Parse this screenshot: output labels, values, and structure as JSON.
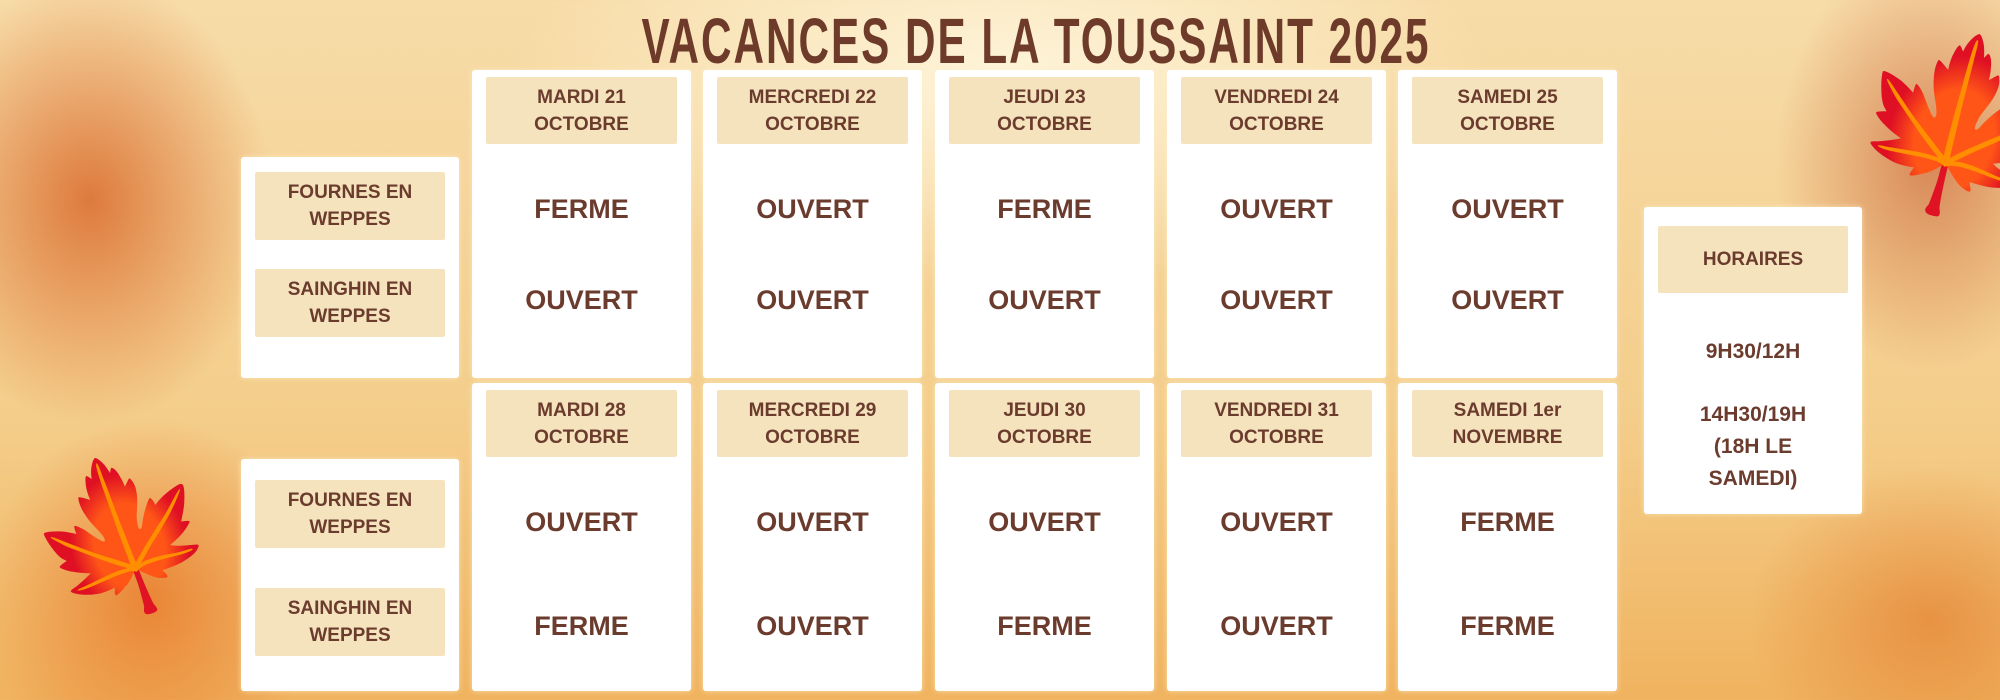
{
  "title": "VACANCES DE LA TOUSSAINT 2025",
  "locations": [
    "FOURNES EN WEPPES",
    "SAINGHIN EN WEPPES"
  ],
  "weeks": [
    {
      "days": [
        {
          "label": "MARDI 21 OCTOBRE",
          "fournes": "FERME",
          "sainghin": "OUVERT"
        },
        {
          "label": "MERCREDI 22 OCTOBRE",
          "fournes": "OUVERT",
          "sainghin": "OUVERT"
        },
        {
          "label": "JEUDI 23 OCTOBRE",
          "fournes": "FERME",
          "sainghin": "OUVERT"
        },
        {
          "label": "VENDREDI 24 OCTOBRE",
          "fournes": "OUVERT",
          "sainghin": "OUVERT"
        },
        {
          "label": "SAMEDI 25 OCTOBRE",
          "fournes": "OUVERT",
          "sainghin": "OUVERT"
        }
      ]
    },
    {
      "days": [
        {
          "label": "MARDI 28 OCTOBRE",
          "fournes": "OUVERT",
          "sainghin": "FERME"
        },
        {
          "label": "MERCREDI 29 OCTOBRE",
          "fournes": "OUVERT",
          "sainghin": "OUVERT"
        },
        {
          "label": "JEUDI 30 OCTOBRE",
          "fournes": "OUVERT",
          "sainghin": "FERME"
        },
        {
          "label": "VENDREDI 31 OCTOBRE",
          "fournes": "OUVERT",
          "sainghin": "OUVERT"
        },
        {
          "label": "SAMEDI 1er NOVEMBRE",
          "fournes": "FERME",
          "sainghin": "FERME"
        }
      ]
    }
  ],
  "hours": {
    "label": "HORAIRES",
    "morning": "9H30/12H",
    "afternoon": "14H30/19H",
    "note": "(18H LE SAMEDI)"
  },
  "colors": {
    "text": "#6b3c2e",
    "header_bg": "#f5e3bd",
    "card_bg": "#ffffff"
  }
}
